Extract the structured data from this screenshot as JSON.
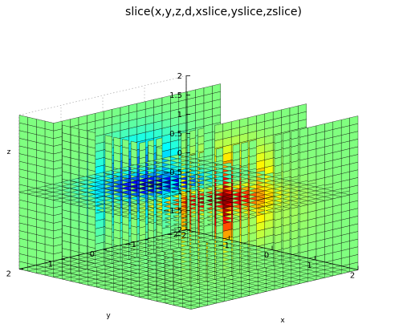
{
  "chart_data": {
    "type": "slice",
    "title": "slice(x,y,z,d,xslice,yslice,zslice)",
    "xlabel": "x",
    "ylabel": "y",
    "zlabel": "z",
    "xlim": [
      -2,
      2
    ],
    "ylim": [
      -2,
      2
    ],
    "zlim": [
      -2,
      2
    ],
    "x_ticks": [
      -2,
      -1,
      0,
      1,
      2
    ],
    "y_ticks": [
      -2,
      -1,
      0,
      1,
      2
    ],
    "z_ticks": [
      2,
      1.5,
      1,
      0.5,
      0,
      -0.5,
      -1,
      -1.5,
      -2
    ],
    "x_tick_labels": [
      "−2",
      "−1",
      "0",
      "1",
      "2"
    ],
    "y_tick_labels": [
      "−2",
      "−1",
      "0",
      "1",
      "2"
    ],
    "z_tick_labels": [
      "2",
      "1.5",
      "1",
      "0.5",
      "0",
      "−0.5",
      "−1",
      "−1.5",
      "−2"
    ],
    "xslice": [
      -1.2,
      0.8,
      2
    ],
    "yslice": [
      2
    ],
    "zslice": [
      -2,
      0
    ],
    "function": "v = x * exp(-x^2 - y^2 - z^2)",
    "colormap": "jet",
    "grid": true
  }
}
